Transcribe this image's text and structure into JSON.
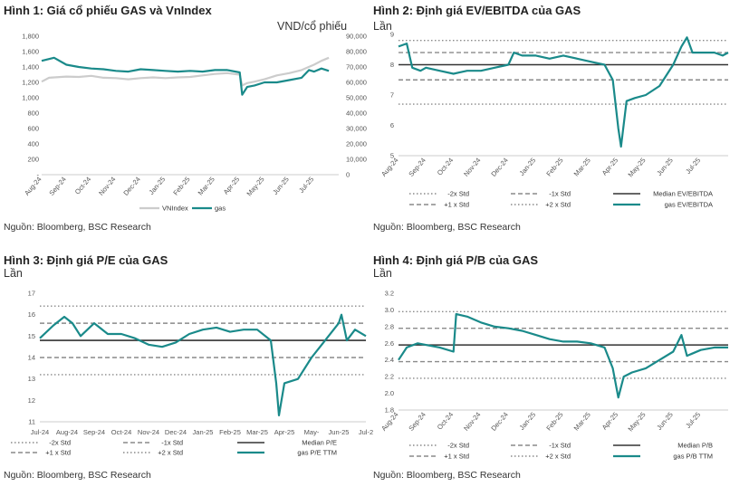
{
  "panels": [
    {
      "title": "Hình 1: Giá cổ phiếu GAS và VnIndex",
      "unit": "VND/cổ phiếu",
      "source": "Nguồn: Bloomberg, BSC Research"
    },
    {
      "title": "Hình 2: Định giá EV/EBITDA của GAS",
      "unit": "Lần",
      "source": "Nguồn: Bloomberg, BSC Research"
    },
    {
      "title": "Hình 3: Định giá P/E của GAS",
      "unit": "Lần",
      "source": "Nguồn: Bloomberg, BSC Research"
    },
    {
      "title": "Hình 4: Định giá P/B của GAS",
      "unit": "Lần",
      "source": "Nguồn: Bloomberg, BSC Research"
    }
  ],
  "colors": {
    "teal": "#1a8a8a",
    "vnindex": "#cccccc",
    "median": "#333333",
    "std1": "#8a8a8a",
    "std2": "#8a8a8a"
  },
  "chart_data": [
    {
      "type": "line",
      "title": "Hình 1: Giá cổ phiếu GAS và VnIndex",
      "x_ticks": [
        "Aug-24",
        "Sep-24",
        "Oct-24",
        "Nov-24",
        "Dec-24",
        "Jan-25",
        "Feb-25",
        "Mar-25",
        "Apr-25",
        "May-25",
        "Jun-25",
        "Jul-25"
      ],
      "y_left_ticks": [
        "-",
        "200",
        "400",
        "600",
        "800",
        "1,000",
        "1,200",
        "1,400",
        "1,600",
        "1,800"
      ],
      "y_left_range": [
        0,
        1800
      ],
      "y_right_ticks": [
        "0",
        "10,000",
        "20,000",
        "30,000",
        "40,000",
        "50,000",
        "60,000",
        "70,000",
        "80,000",
        "90,000"
      ],
      "y_right_range": [
        0,
        90000
      ],
      "series": [
        {
          "name": "VNIndex",
          "axis": "left",
          "points": [
            [
              0,
              1210
            ],
            [
              0.3,
              1260
            ],
            [
              1,
              1275
            ],
            [
              1.5,
              1270
            ],
            [
              2,
              1285
            ],
            [
              2.5,
              1260
            ],
            [
              3,
              1255
            ],
            [
              3.5,
              1240
            ],
            [
              4,
              1255
            ],
            [
              4.5,
              1265
            ],
            [
              5,
              1255
            ],
            [
              5.5,
              1265
            ],
            [
              6,
              1270
            ],
            [
              6.5,
              1290
            ],
            [
              7,
              1310
            ],
            [
              7.5,
              1320
            ],
            [
              8,
              1300
            ],
            [
              8.1,
              1160
            ],
            [
              8.3,
              1190
            ],
            [
              8.6,
              1210
            ],
            [
              9,
              1240
            ],
            [
              9.5,
              1290
            ],
            [
              10,
              1320
            ],
            [
              10.5,
              1360
            ],
            [
              11,
              1430
            ],
            [
              11.3,
              1480
            ],
            [
              11.6,
              1520
            ]
          ]
        },
        {
          "name": "gas",
          "axis": "right",
          "points": [
            [
              0,
              74000
            ],
            [
              0.5,
              76000
            ],
            [
              1,
              71500
            ],
            [
              1.5,
              70000
            ],
            [
              2,
              69000
            ],
            [
              2.5,
              68500
            ],
            [
              3,
              67500
            ],
            [
              3.5,
              67000
            ],
            [
              4,
              68500
            ],
            [
              4.5,
              68000
            ],
            [
              5,
              67500
            ],
            [
              5.5,
              67000
            ],
            [
              6,
              67500
            ],
            [
              6.5,
              67000
            ],
            [
              7,
              68000
            ],
            [
              7.5,
              68000
            ],
            [
              8,
              66500
            ],
            [
              8.1,
              52000
            ],
            [
              8.3,
              57000
            ],
            [
              8.6,
              58000
            ],
            [
              9,
              60000
            ],
            [
              9.5,
              60000
            ],
            [
              10,
              61500
            ],
            [
              10.5,
              63000
            ],
            [
              10.8,
              68000
            ],
            [
              11,
              67000
            ],
            [
              11.3,
              69000
            ],
            [
              11.6,
              67500
            ]
          ]
        }
      ]
    },
    {
      "type": "line",
      "title": "Hình 2: Định giá EV/EBITDA của GAS",
      "x_ticks": [
        "Aug-24",
        "Sep-24",
        "Oct-24",
        "Nov-24",
        "Dec-24",
        "Jan-25",
        "Feb-25",
        "Mar-25",
        "Apr-25",
        "May-25",
        "Jun-25",
        "Jul-25"
      ],
      "y_ticks": [
        5,
        6,
        7,
        8,
        9
      ],
      "ylim": [
        5,
        9
      ],
      "reference_lines": [
        {
          "name": "-2x Std",
          "value": 6.7
        },
        {
          "name": "-1x Std",
          "value": 7.5
        },
        {
          "name": "Median EV/EBITDA",
          "value": 8.0
        },
        {
          "name": "+1 x Std",
          "value": 8.4
        },
        {
          "name": "+2 x Std",
          "value": 8.8
        }
      ],
      "series": [
        {
          "name": "gas EV/EBITDA",
          "points": [
            [
              0,
              8.6
            ],
            [
              0.3,
              8.7
            ],
            [
              0.5,
              7.9
            ],
            [
              0.8,
              7.8
            ],
            [
              1,
              7.9
            ],
            [
              1.5,
              7.8
            ],
            [
              2,
              7.7
            ],
            [
              2.5,
              7.8
            ],
            [
              3,
              7.8
            ],
            [
              3.5,
              7.9
            ],
            [
              4,
              8.0
            ],
            [
              4.2,
              8.4
            ],
            [
              4.5,
              8.3
            ],
            [
              5,
              8.3
            ],
            [
              5.5,
              8.2
            ],
            [
              6,
              8.3
            ],
            [
              6.5,
              8.2
            ],
            [
              7,
              8.1
            ],
            [
              7.5,
              8.0
            ],
            [
              7.8,
              7.5
            ],
            [
              8,
              5.9
            ],
            [
              8.1,
              5.3
            ],
            [
              8.3,
              6.8
            ],
            [
              8.6,
              6.9
            ],
            [
              9,
              7.0
            ],
            [
              9.5,
              7.3
            ],
            [
              10,
              8.0
            ],
            [
              10.3,
              8.6
            ],
            [
              10.5,
              8.9
            ],
            [
              10.7,
              8.4
            ],
            [
              11,
              8.4
            ],
            [
              11.5,
              8.4
            ],
            [
              11.8,
              8.3
            ],
            [
              12,
              8.4
            ]
          ]
        }
      ]
    },
    {
      "type": "line",
      "title": "Hình 3: Định giá P/E của GAS",
      "x_ticks": [
        "Jul-24",
        "Aug-24",
        "Sep-24",
        "Oct-24",
        "Nov-24",
        "Dec-24",
        "Jan-25",
        "Feb-25",
        "Mar-25",
        "Apr-25",
        "May-",
        "Jun-25",
        "Jul-2"
      ],
      "y_ticks": [
        11,
        12,
        13,
        14,
        15,
        16,
        17
      ],
      "ylim": [
        11,
        17
      ],
      "reference_lines": [
        {
          "name": "-2x Std",
          "value": 13.2
        },
        {
          "name": "-1x Std",
          "value": 14.0
        },
        {
          "name": "Median P/E",
          "value": 14.8
        },
        {
          "name": "+1 x Std",
          "value": 15.6
        },
        {
          "name": "+2 x Std",
          "value": 16.4
        }
      ],
      "series": [
        {
          "name": "gas P/E TTM",
          "points": [
            [
              0,
              14.9
            ],
            [
              0.5,
              15.5
            ],
            [
              0.9,
              15.9
            ],
            [
              1.2,
              15.6
            ],
            [
              1.5,
              15.0
            ],
            [
              2,
              15.6
            ],
            [
              2.5,
              15.1
            ],
            [
              3,
              15.1
            ],
            [
              3.5,
              14.9
            ],
            [
              4,
              14.6
            ],
            [
              4.5,
              14.5
            ],
            [
              5,
              14.7
            ],
            [
              5.5,
              15.1
            ],
            [
              6,
              15.3
            ],
            [
              6.5,
              15.4
            ],
            [
              7,
              15.2
            ],
            [
              7.5,
              15.3
            ],
            [
              8,
              15.3
            ],
            [
              8.5,
              14.8
            ],
            [
              8.7,
              12.8
            ],
            [
              8.8,
              11.3
            ],
            [
              9,
              12.8
            ],
            [
              9.5,
              13.0
            ],
            [
              10,
              14.0
            ],
            [
              10.5,
              14.8
            ],
            [
              11,
              15.6
            ],
            [
              11.1,
              16.0
            ],
            [
              11.3,
              14.8
            ],
            [
              11.6,
              15.3
            ],
            [
              12,
              15.0
            ]
          ]
        }
      ]
    },
    {
      "type": "line",
      "title": "Hình 4: Định giá P/B của GAS",
      "x_ticks": [
        "Aug-24",
        "Sep-24",
        "Oct-24",
        "Nov-24",
        "Dec-24",
        "Jan-25",
        "Feb-25",
        "Mar-25",
        "Apr-25",
        "May-25",
        "Jun-25",
        "Jul-25"
      ],
      "y_ticks": [
        1.8,
        2.0,
        2.2,
        2.4,
        2.6,
        2.8,
        3.0,
        3.2
      ],
      "ylim": [
        1.8,
        3.2
      ],
      "reference_lines": [
        {
          "name": "-2x Std",
          "value": 2.18
        },
        {
          "name": "-1x Std",
          "value": 2.38
        },
        {
          "name": "Median P/B",
          "value": 2.58
        },
        {
          "name": "+1 x Std",
          "value": 2.78
        },
        {
          "name": "+2 x Std",
          "value": 2.98
        }
      ],
      "series": [
        {
          "name": "gas P/B TTM",
          "points": [
            [
              0,
              2.4
            ],
            [
              0.3,
              2.55
            ],
            [
              0.7,
              2.6
            ],
            [
              1,
              2.58
            ],
            [
              1.5,
              2.55
            ],
            [
              2,
              2.5
            ],
            [
              2.1,
              2.95
            ],
            [
              2.5,
              2.92
            ],
            [
              3,
              2.85
            ],
            [
              3.5,
              2.8
            ],
            [
              4,
              2.78
            ],
            [
              4.5,
              2.75
            ],
            [
              5,
              2.7
            ],
            [
              5.5,
              2.65
            ],
            [
              6,
              2.62
            ],
            [
              6.5,
              2.62
            ],
            [
              7,
              2.6
            ],
            [
              7.5,
              2.55
            ],
            [
              7.8,
              2.3
            ],
            [
              8,
              1.95
            ],
            [
              8.2,
              2.2
            ],
            [
              8.5,
              2.25
            ],
            [
              9,
              2.3
            ],
            [
              9.5,
              2.4
            ],
            [
              10,
              2.5
            ],
            [
              10.3,
              2.7
            ],
            [
              10.5,
              2.45
            ],
            [
              11,
              2.52
            ],
            [
              11.5,
              2.55
            ],
            [
              12,
              2.55
            ]
          ]
        }
      ]
    }
  ],
  "legends": [
    [
      {
        "label": "VNIndex",
        "style": "vnindex"
      },
      {
        "label": "gas",
        "style": "teal"
      }
    ],
    [
      {
        "label": "-2x Std",
        "style": "std2"
      },
      {
        "label": "-1x Std",
        "style": "std1"
      },
      {
        "label": "Median EV/EBITDA",
        "style": "median"
      },
      {
        "label": "+1 x Std",
        "style": "std1"
      },
      {
        "label": "+2 x Std",
        "style": "std2"
      },
      {
        "label": "gas EV/EBITDA",
        "style": "teal"
      }
    ],
    [
      {
        "label": "-2x Std",
        "style": "std2"
      },
      {
        "label": "-1x Std",
        "style": "std1"
      },
      {
        "label": "Median P/E",
        "style": "median"
      },
      {
        "label": "+1 x Std",
        "style": "std1"
      },
      {
        "label": "+2 x Std",
        "style": "std2"
      },
      {
        "label": "gas P/E TTM",
        "style": "teal"
      }
    ],
    [
      {
        "label": "-2x Std",
        "style": "std2"
      },
      {
        "label": "-1x Std",
        "style": "std1"
      },
      {
        "label": "Median P/B",
        "style": "median"
      },
      {
        "label": "+1 x Std",
        "style": "std1"
      },
      {
        "label": "+2 x Std",
        "style": "std2"
      },
      {
        "label": "gas P/B TTM",
        "style": "teal"
      }
    ]
  ]
}
